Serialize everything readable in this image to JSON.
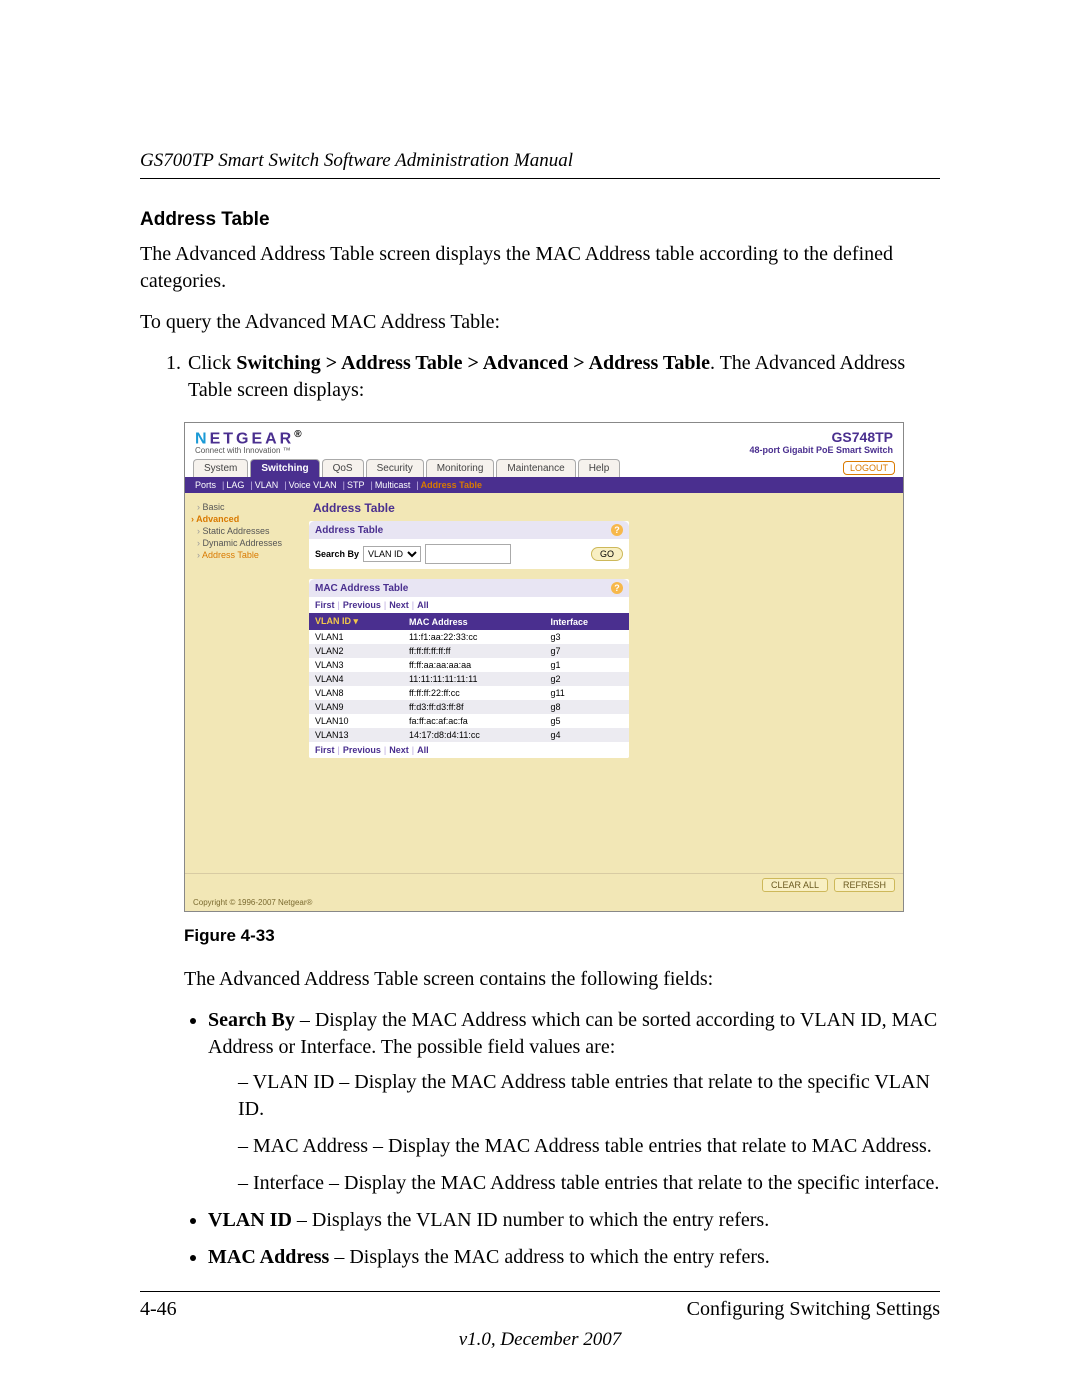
{
  "colors": {
    "brand1": "#1a9ad6",
    "brand2": "#4a2f8f",
    "accent": "#d97a00",
    "panel_bg": "#f2e7b6"
  },
  "doc": {
    "header_title": "GS700TP Smart Switch Software Administration Manual",
    "section_title": "Address Table",
    "para1": "The Advanced Address Table screen displays the MAC Address table according to the defined categories.",
    "para2": "To query the Advanced MAC Address Table:",
    "step1_pre": "Click ",
    "step1_bold": "Switching > Address Table > Advanced > Address Table",
    "step1_post": ". The Advanced Address Table screen displays:",
    "figure_caption": "Figure 4-33",
    "para3": "The Advanced Address Table screen contains the following fields:",
    "bullets": [
      {
        "lead": "Search By",
        "rest": " – Display the MAC Address which can be sorted according to VLAN ID, MAC Address or Interface. The possible field values are:",
        "subs": [
          "VLAN ID – Display the MAC Address table entries that relate to the specific VLAN ID.",
          "MAC Address – Display the MAC Address table entries that relate to MAC Address.",
          "Interface – Display the MAC Address table entries that relate to the specific interface."
        ]
      },
      {
        "lead": "VLAN ID",
        "rest": " – Displays the VLAN ID number to which the entry refers.",
        "subs": []
      },
      {
        "lead": "MAC Address",
        "rest": " – Displays the MAC address to which the entry refers.",
        "subs": []
      }
    ],
    "footer_left": "4-46",
    "footer_right": "Configuring Switching Settings",
    "footer_version": "v1.0, December 2007"
  },
  "screenshot": {
    "logo": {
      "n": "N",
      "rest": "ETGEAR",
      "tagline": "Connect with Innovation ™"
    },
    "product": {
      "model": "GS748TP",
      "desc": "48-port Gigabit PoE Smart Switch"
    },
    "tabs": [
      "System",
      "Switching",
      "QoS",
      "Security",
      "Monitoring",
      "Maintenance",
      "Help"
    ],
    "active_tab_index": 1,
    "logout": "LOGOUT",
    "subtabs": [
      "Ports",
      "LAG",
      "VLAN",
      "Voice VLAN",
      "STP",
      "Multicast",
      "Address Table"
    ],
    "active_subtab_index": 6,
    "sidenav": {
      "basic": "Basic",
      "advanced": "Advanced",
      "items": [
        "Static Addresses",
        "Dynamic Addresses",
        "Address Table"
      ],
      "active_item_index": 2
    },
    "content_title": "Address Table",
    "search_panel": {
      "title": "Address Table",
      "label": "Search By",
      "select_value": "VLAN ID",
      "input_value": "",
      "go": "GO"
    },
    "mac_panel": {
      "title": "MAC Address Table",
      "pager": [
        "First",
        "Previous",
        "Next",
        "All"
      ],
      "columns": [
        "VLAN ID ▾",
        "MAC Address",
        "Interface"
      ],
      "rows": [
        [
          "VLAN1",
          "11:f1:aa:22:33:cc",
          "g3"
        ],
        [
          "VLAN2",
          "ff:ff:ff:ff:ff:ff",
          "g7"
        ],
        [
          "VLAN3",
          "ff:ff:aa:aa:aa:aa",
          "g1"
        ],
        [
          "VLAN4",
          "11:11:11:11:11:11",
          "g2"
        ],
        [
          "VLAN8",
          "ff:ff:ff:22:ff:cc",
          "g11"
        ],
        [
          "VLAN9",
          "ff:d3:ff:d3:ff:8f",
          "g8"
        ],
        [
          "VLAN10",
          "fa:ff:ac:af:ac:fa",
          "g5"
        ],
        [
          "VLAN13",
          "14:17:d8:d4:11:cc",
          "g4"
        ]
      ]
    },
    "footer_buttons": [
      "CLEAR ALL",
      "REFRESH"
    ],
    "copyright": "Copyright © 1996-2007 Netgear®"
  }
}
